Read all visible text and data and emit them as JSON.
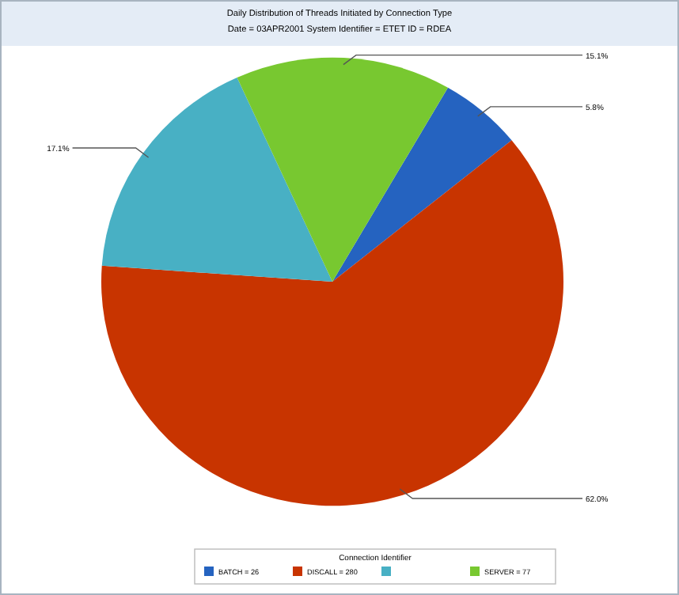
{
  "chart_data": {
    "type": "pie",
    "title": "Daily Distribution of Threads Initiated by Connection Type",
    "subtitle": "Date = 03APR2001 System Identifier = ETET ID = RDEA",
    "categories": [
      "BATCH = 26",
      "DISCALL = 280",
      null,
      "SERVER = 77"
    ],
    "values": [
      5.8,
      62.0,
      17.1,
      15.1
    ],
    "value_labels": [
      "5.8%",
      "62.0%",
      "17.1%",
      "15.1%"
    ],
    "colors": [
      "#2563c0",
      "#c83400",
      "#48b0c4",
      "#78c830"
    ],
    "legend": "bottom",
    "legend_title": "Connection Identifier"
  }
}
